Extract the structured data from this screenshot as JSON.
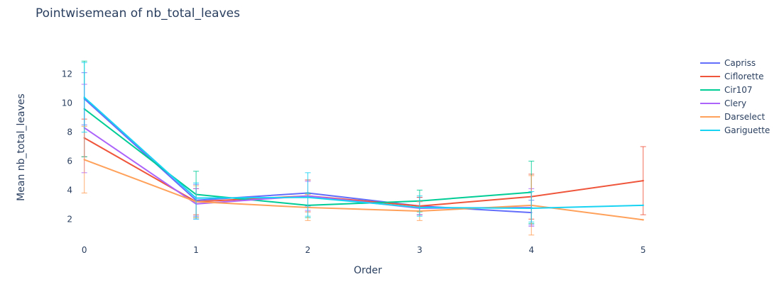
{
  "chart_data": {
    "type": "line",
    "title": "Pointwisemean of nb_total_leaves",
    "xlabel": "Order",
    "ylabel": "Mean nb_total_leaves",
    "xlim": [
      -0.1,
      5.25
    ],
    "ylim": [
      0.5,
      13.5
    ],
    "x_ticks": [
      "0",
      "1",
      "2",
      "3",
      "4",
      "5"
    ],
    "y_ticks": [
      "2",
      "4",
      "6",
      "8",
      "10",
      "12"
    ],
    "grid": false,
    "legend_position": "top-right",
    "series": [
      {
        "name": "Capriss",
        "color": "#636efa",
        "x": [
          0,
          1,
          2,
          3,
          4
        ],
        "y": [
          10.3,
          3.3,
          3.8,
          2.9,
          2.45
        ],
        "err_low": [
          8.5,
          2.2,
          2.9,
          2.3,
          1.6
        ],
        "err_high": [
          12.1,
          4.4,
          4.7,
          3.5,
          3.3
        ]
      },
      {
        "name": "Ciflorette",
        "color": "#ef553b",
        "x": [
          0,
          1,
          2,
          3,
          4,
          5
        ],
        "y": [
          7.6,
          3.2,
          3.6,
          2.9,
          3.55,
          4.65
        ],
        "err_low": [
          6.3,
          2.3,
          2.5,
          2.3,
          2.0,
          2.3
        ],
        "err_high": [
          8.9,
          4.1,
          4.7,
          3.5,
          5.1,
          7.0
        ]
      },
      {
        "name": "Cir107",
        "color": "#00cc96",
        "x": [
          0,
          1,
          2,
          3,
          4
        ],
        "y": [
          9.6,
          3.7,
          2.95,
          3.25,
          3.85
        ],
        "err_low": [
          6.3,
          2.1,
          2.1,
          2.5,
          1.7
        ],
        "err_high": [
          12.9,
          5.3,
          3.8,
          4.0,
          6.0
        ]
      },
      {
        "name": "Clery",
        "color": "#ab63fa",
        "x": [
          0,
          1,
          2,
          3,
          4
        ],
        "y": [
          8.3,
          3.05,
          3.6,
          2.75,
          2.8
        ],
        "err_low": [
          5.2,
          2.0,
          2.6,
          2.3,
          1.5
        ],
        "err_high": [
          11.3,
          4.1,
          4.6,
          3.2,
          4.1
        ]
      },
      {
        "name": "Darselect",
        "color": "#ffa15a",
        "x": [
          0,
          1,
          2,
          3,
          4,
          5
        ],
        "y": [
          6.1,
          3.2,
          2.8,
          2.55,
          2.95,
          1.95
        ],
        "err_low": [
          3.8,
          2.1,
          1.9,
          1.9,
          0.9,
          1.95
        ],
        "err_high": [
          8.4,
          4.3,
          3.7,
          3.2,
          5.0,
          1.95
        ]
      },
      {
        "name": "Gariguette",
        "color": "#19d3f3",
        "x": [
          0,
          1,
          2,
          3,
          4,
          5
        ],
        "y": [
          10.4,
          3.45,
          3.5,
          2.8,
          2.75,
          2.95
        ],
        "err_low": [
          8.0,
          2.0,
          2.2,
          2.2,
          1.8,
          2.95
        ],
        "err_high": [
          12.8,
          4.5,
          5.2,
          3.6,
          3.9,
          2.95
        ]
      }
    ]
  }
}
